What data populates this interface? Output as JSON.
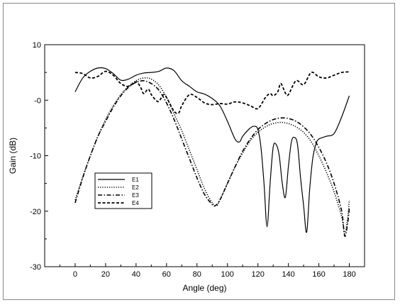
{
  "chart_data": {
    "type": "line",
    "title": "",
    "xlabel": "Angle (deg)",
    "ylabel": "Gain (dB)",
    "xlim": [
      -20,
      190
    ],
    "ylim": [
      -30,
      10
    ],
    "x_ticks": [
      0,
      20,
      40,
      60,
      80,
      100,
      120,
      140,
      160,
      180
    ],
    "x_tick_labels": [
      "0",
      "20",
      "40",
      "60",
      "80",
      "100",
      "120",
      "140",
      "160",
      "180"
    ],
    "y_ticks": [
      10,
      0,
      -10,
      -20,
      -30
    ],
    "y_tick_labels": [
      "10",
      "-0",
      "-10",
      "-20",
      "-30"
    ],
    "grid": false,
    "legend_position": "lower-left",
    "series": [
      {
        "name": "E1",
        "style": "solid",
        "color": "#000000",
        "x": [
          0,
          5,
          10,
          15,
          20,
          25,
          30,
          35,
          40,
          45,
          50,
          55,
          60,
          65,
          70,
          75,
          80,
          85,
          90,
          95,
          100,
          105,
          108,
          110,
          115,
          118,
          120,
          122,
          124,
          126,
          128,
          130,
          132,
          134,
          136,
          138,
          140,
          142,
          144,
          146,
          148,
          150,
          152,
          154,
          156,
          158,
          160,
          165,
          170,
          175,
          180
        ],
        "y": [
          1.5,
          4.0,
          5.2,
          5.8,
          5.7,
          4.8,
          3.6,
          3.8,
          4.5,
          4.9,
          5.0,
          5.2,
          5.8,
          5.3,
          3.5,
          2.5,
          1.5,
          1.1,
          0.3,
          -1.0,
          -3.8,
          -7.0,
          -7.5,
          -6.5,
          -5.0,
          -4.7,
          -5.3,
          -8.5,
          -15.0,
          -22.8,
          -15.0,
          -8.5,
          -8.0,
          -10.0,
          -15.0,
          -17.5,
          -12.0,
          -7.5,
          -6.7,
          -8.0,
          -14.0,
          -19.0,
          -23.8,
          -16.0,
          -10.5,
          -8.0,
          -7.0,
          -6.5,
          -6.0,
          -3.0,
          0.8
        ]
      },
      {
        "name": "E2",
        "style": "dotted",
        "color": "#000000",
        "x": [
          0,
          5,
          10,
          15,
          20,
          25,
          30,
          35,
          40,
          45,
          50,
          55,
          60,
          65,
          70,
          75,
          80,
          85,
          90,
          93,
          95,
          100,
          105,
          110,
          115,
          120,
          125,
          130,
          135,
          140,
          145,
          150,
          155,
          160,
          165,
          170,
          175,
          177,
          179,
          180
        ],
        "y": [
          -18.0,
          -13.8,
          -10.0,
          -6.5,
          -3.5,
          -1.0,
          1.0,
          2.5,
          3.5,
          4.0,
          3.8,
          2.7,
          0.5,
          -2.5,
          -5.5,
          -9.0,
          -12.5,
          -16.0,
          -18.5,
          -19.0,
          -18.0,
          -15.0,
          -12.0,
          -9.5,
          -7.3,
          -5.8,
          -4.8,
          -4.2,
          -4.0,
          -4.2,
          -4.8,
          -5.8,
          -7.5,
          -10.0,
          -13.0,
          -16.5,
          -21.0,
          -24.0,
          -21.0,
          -18.0
        ]
      },
      {
        "name": "E3",
        "style": "dashdot",
        "color": "#000000",
        "x": [
          0,
          5,
          10,
          15,
          20,
          25,
          30,
          35,
          40,
          45,
          50,
          55,
          60,
          65,
          70,
          75,
          80,
          85,
          90,
          92,
          95,
          100,
          105,
          110,
          115,
          120,
          125,
          130,
          135,
          140,
          145,
          150,
          155,
          160,
          165,
          170,
          175,
          177,
          179,
          180
        ],
        "y": [
          -18.5,
          -14.0,
          -10.0,
          -6.5,
          -3.8,
          -1.3,
          0.8,
          2.3,
          3.2,
          3.5,
          3.0,
          1.8,
          -0.5,
          -3.5,
          -7.0,
          -10.5,
          -14.0,
          -17.0,
          -18.8,
          -19.0,
          -18.0,
          -15.0,
          -12.0,
          -9.2,
          -7.0,
          -5.3,
          -4.2,
          -3.5,
          -3.2,
          -3.3,
          -3.8,
          -4.8,
          -6.3,
          -8.5,
          -11.3,
          -15.0,
          -20.0,
          -24.5,
          -22.0,
          -19.5
        ]
      },
      {
        "name": "E4",
        "style": "dashed",
        "color": "#000000",
        "x": [
          0,
          5,
          10,
          15,
          20,
          25,
          30,
          35,
          40,
          43,
          45,
          48,
          50,
          53,
          55,
          58,
          60,
          65,
          68,
          70,
          75,
          80,
          85,
          90,
          95,
          100,
          105,
          110,
          115,
          120,
          125,
          128,
          130,
          133,
          135,
          138,
          140,
          145,
          150,
          155,
          160,
          165,
          170,
          175,
          180
        ],
        "y": [
          5.0,
          4.8,
          4.0,
          4.3,
          5.2,
          4.5,
          3.0,
          2.5,
          3.3,
          2.3,
          1.2,
          2.0,
          1.0,
          0.0,
          -0.2,
          1.0,
          0.5,
          -2.0,
          -2.3,
          -1.0,
          1.0,
          0.5,
          -0.5,
          -0.8,
          -0.6,
          -0.7,
          -0.3,
          -0.5,
          -1.0,
          -1.5,
          0.5,
          1.2,
          0.8,
          1.5,
          3.0,
          1.3,
          1.0,
          3.5,
          2.8,
          5.0,
          4.2,
          4.0,
          4.5,
          5.0,
          5.1
        ]
      }
    ]
  }
}
